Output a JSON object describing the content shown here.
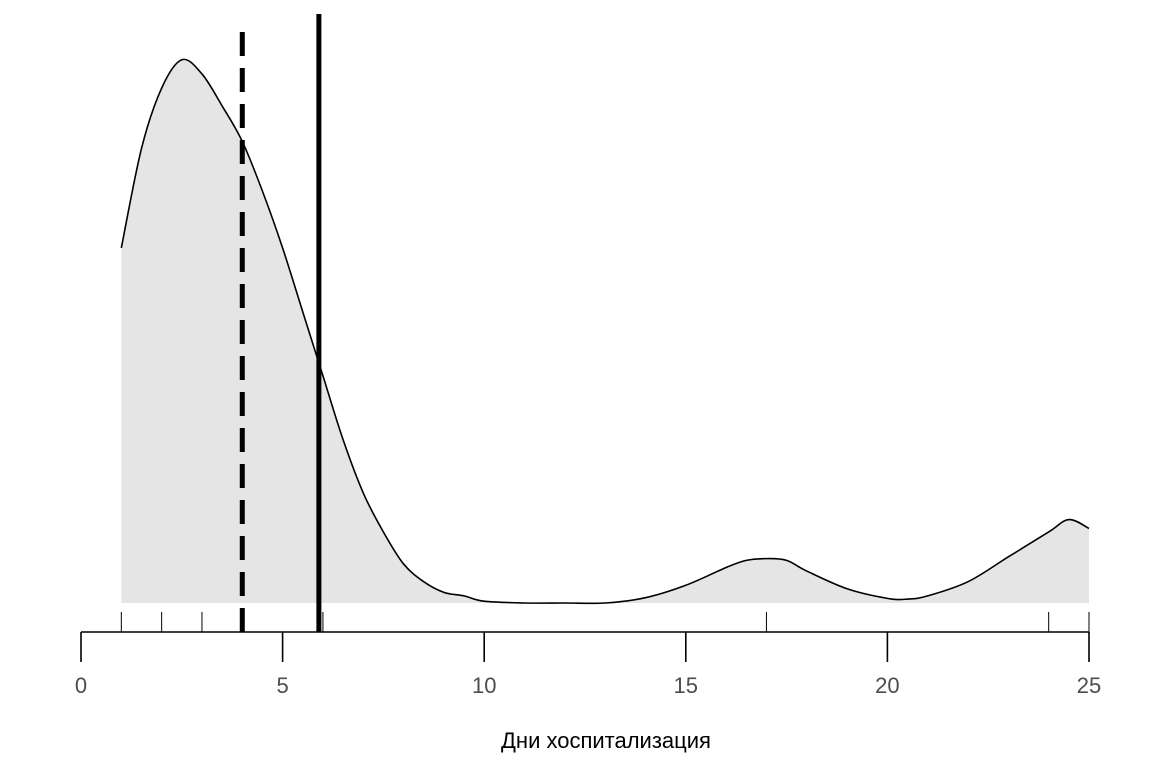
{
  "chart_data": {
    "type": "area",
    "subtype": "density",
    "xlabel": "Дни хоспитализация",
    "ylabel": "",
    "xlim": [
      0,
      25
    ],
    "x_ticks": [
      0,
      5,
      10,
      15,
      20,
      25
    ],
    "x_tick_labels": [
      "0",
      "5",
      "10",
      "15",
      "20",
      "25"
    ],
    "grid": false,
    "legend": "none",
    "density_curve": {
      "x": [
        1,
        1.5,
        2,
        2.5,
        3,
        3.5,
        4,
        4.5,
        5,
        5.5,
        6,
        6.5,
        7,
        7.5,
        8,
        8.5,
        9,
        9.5,
        10,
        11,
        12,
        13,
        14,
        15,
        16,
        16.5,
        17,
        17.5,
        18,
        19,
        20,
        20.5,
        21,
        22,
        23,
        24,
        24.5,
        25
      ],
      "y": [
        0.1,
        0.128,
        0.145,
        0.153,
        0.149,
        0.14,
        0.13,
        0.116,
        0.1,
        0.082,
        0.064,
        0.046,
        0.031,
        0.02,
        0.011,
        0.006,
        0.003,
        0.002,
        0.0005,
        0.0,
        0.0,
        0.0,
        0.0015,
        0.005,
        0.01,
        0.012,
        0.0125,
        0.012,
        0.009,
        0.004,
        0.0013,
        0.0011,
        0.002,
        0.006,
        0.013,
        0.02,
        0.0235,
        0.021
      ]
    },
    "rug": [
      1,
      2,
      3,
      4,
      6,
      17,
      24,
      25
    ],
    "reference_lines": [
      {
        "style": "dashed",
        "x": 4
      },
      {
        "style": "solid",
        "x": 5.9
      }
    ],
    "ylim": [
      0,
      0.158
    ],
    "colors": {
      "fill": "#e5e5e5",
      "line": "#000000",
      "axis": "#000000",
      "tick_label": "#4d4d4d"
    }
  }
}
